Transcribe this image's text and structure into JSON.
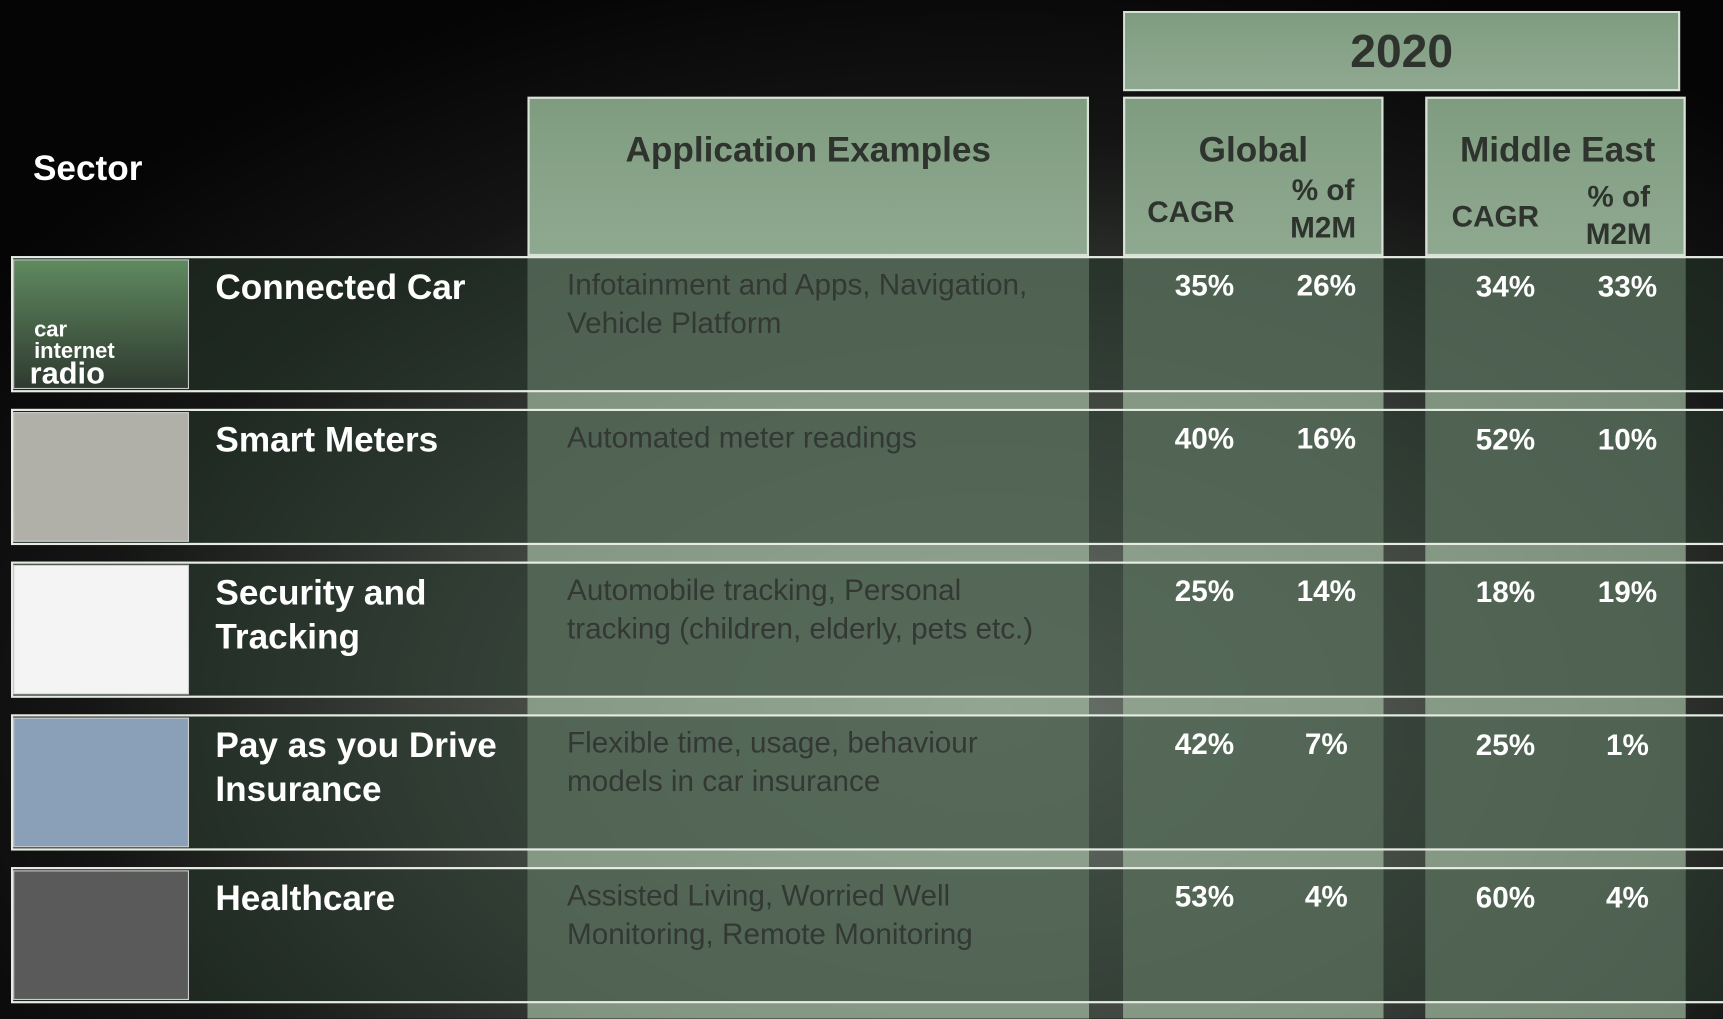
{
  "header": {
    "year": "2020",
    "sector": "Sector",
    "applications": "Application Examples",
    "global": {
      "title": "Global",
      "cagr": "CAGR",
      "share": "% of M2M"
    },
    "middle_east": {
      "title": "Middle East",
      "cagr": "CAGR",
      "share": "% of M2M"
    }
  },
  "rows": [
    {
      "sector": "Connected Car",
      "applications": "Infotainment and Apps, Navigation, Vehicle Platform",
      "global_cagr": "35%",
      "global_share": "26%",
      "me_cagr": "34%",
      "me_share": "33%"
    },
    {
      "sector": "Smart Meters",
      "applications": "Automated meter readings",
      "global_cagr": "40%",
      "global_share": "16%",
      "me_cagr": "52%",
      "me_share": "10%"
    },
    {
      "sector": "Security and Tracking",
      "applications": "Automobile tracking, Personal tracking (children, elderly, pets etc.)",
      "global_cagr": "25%",
      "global_share": "14%",
      "me_cagr": "18%",
      "me_share": "19%"
    },
    {
      "sector": "Pay as you Drive Insurance",
      "applications": "Flexible time, usage, behaviour models in car insurance",
      "global_cagr": "42%",
      "global_share": "7%",
      "me_cagr": "25%",
      "me_share": "1%"
    },
    {
      "sector": "Healthcare",
      "applications": "Assisted Living, Worried Well Monitoring, Remote Monitoring",
      "global_cagr": "53%",
      "global_share": "4%",
      "me_cagr": "60%",
      "me_share": "4%"
    }
  ],
  "image_labels": {
    "car_radio": [
      "car",
      "internet",
      "radio"
    ]
  }
}
